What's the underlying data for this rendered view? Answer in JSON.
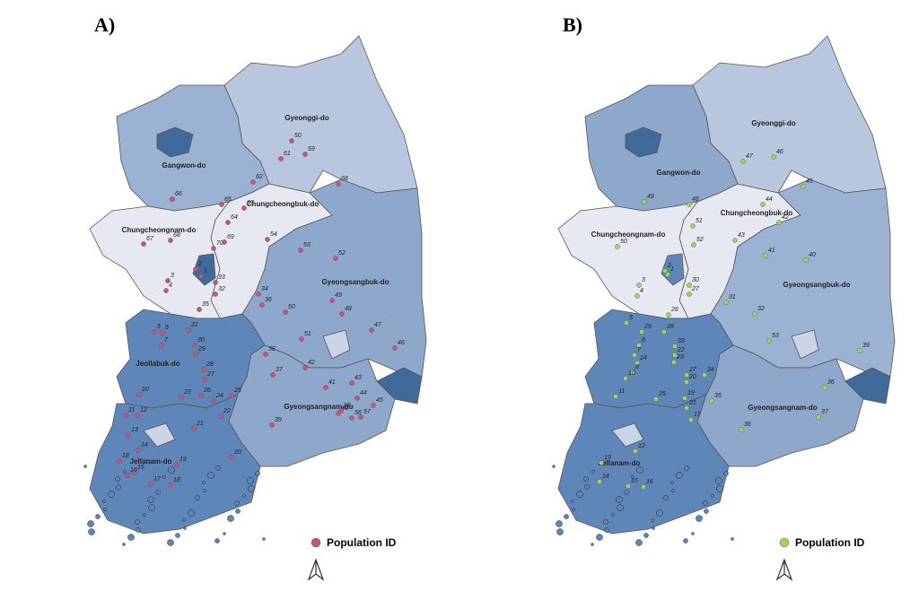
{
  "panels": [
    {
      "label": "A)",
      "marker_color": "#c4567e",
      "legend": "Population ID",
      "regions": [
        {
          "name": "Gyeonggi-do",
          "fill": "#b9c7de"
        },
        {
          "name": "Gangwon-do",
          "fill": "#9bb2d2"
        },
        {
          "name": "Chungcheongbuk-do",
          "fill": "#e6e9f2"
        },
        {
          "name": "Chungcheongnam-do",
          "fill": "#e6e9f2"
        },
        {
          "name": "Gyeongsangbuk-do",
          "fill": "#8ea8cc"
        },
        {
          "name": "Jeollabuk-do",
          "fill": "#5f86b8"
        },
        {
          "name": "Gyeongsangnam-do",
          "fill": "#8ea8cc"
        },
        {
          "name": "Jellanam-do",
          "fill": "#5f86b8"
        }
      ],
      "areas": [
        {
          "fill": "#3f6a9a"
        },
        {
          "fill": "#3f6a9a"
        },
        {
          "fill": "#c9d4e6"
        },
        {
          "fill": "#3f6a9a"
        },
        {
          "fill": "#c9d4e6"
        }
      ],
      "points": [
        "50",
        "59",
        "61",
        "62",
        "68",
        "66",
        "65",
        "63",
        "64",
        "67",
        "68",
        "70",
        "69",
        "54",
        "53",
        "52",
        "2",
        "1",
        "3",
        "33",
        "4",
        "32",
        "34",
        "36",
        "49",
        "50",
        "48",
        "35",
        "31",
        "5",
        "6",
        "47",
        "51",
        "7",
        "30",
        "38",
        "29",
        "46",
        "42",
        "28",
        "37",
        "27",
        "43",
        "41",
        "10",
        "23",
        "26",
        "25",
        "24",
        "45",
        "40",
        "55",
        "56",
        "57",
        "11",
        "12",
        "22",
        "44",
        "21",
        "39",
        "13",
        "14",
        "20",
        "18",
        "19",
        "15",
        "16",
        "17",
        "18"
      ]
    },
    {
      "label": "B)",
      "marker_color": "#9ed65a",
      "legend": "Population ID",
      "regions": [
        {
          "name": "Gyeonggi-do",
          "fill": "#b9c7de"
        },
        {
          "name": "Gangwon-do",
          "fill": "#8ea8cc"
        },
        {
          "name": "Chungcheongbuk-do",
          "fill": "#e6e9f2"
        },
        {
          "name": "Chungcheongnam-do",
          "fill": "#e6e9f2"
        },
        {
          "name": "Gyeongsangbuk-do",
          "fill": "#9bb2d2"
        },
        {
          "fill": "#5f86b8"
        },
        {
          "name": "Gyeongsangnam-do",
          "fill": "#8ea8cc"
        },
        {
          "name": "Jellanam-do",
          "fill": "#5f86b8"
        }
      ],
      "areas": [
        {
          "fill": "#3f6a9a"
        },
        {
          "fill": "#5f86b8"
        },
        {
          "fill": "#c9d4e6"
        },
        {
          "fill": "#3f6a9a"
        },
        {
          "fill": "#c9d4e6"
        }
      ],
      "points": [
        "47",
        "46",
        "45",
        "49",
        "48",
        "44",
        "42",
        "51",
        "52",
        "50",
        "43",
        "41",
        "40",
        "2",
        "1",
        "30",
        "3",
        "27",
        "4",
        "31",
        "26",
        "32",
        "5",
        "29",
        "28",
        "6",
        "33",
        "22",
        "53",
        "39",
        "7",
        "24",
        "23",
        "8",
        "10",
        "27",
        "34",
        "20",
        "36",
        "11",
        "25",
        "19",
        "35",
        "21",
        "17",
        "37",
        "36",
        "12",
        "13",
        "14",
        "15",
        "16"
      ]
    }
  ]
}
